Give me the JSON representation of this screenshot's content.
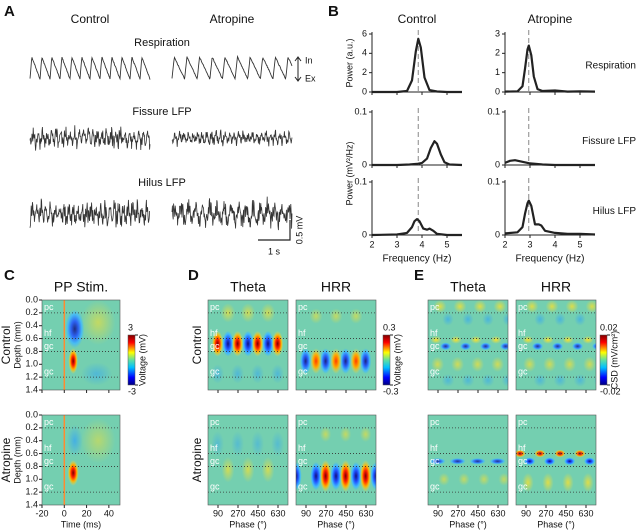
{
  "figure": {
    "A": {
      "label": "A",
      "columns": [
        "Control",
        "Atropine"
      ],
      "rows": [
        "Respiration",
        "Fissure LFP",
        "Hilus LFP"
      ],
      "arrow": [
        "In",
        "Ex"
      ],
      "scale_x": "1 s",
      "scale_y": "0.5 mV"
    },
    "B": {
      "label": "B",
      "columns": [
        "Control",
        "Atropine"
      ]
    },
    "C": {
      "label": "C",
      "title": "PP Stim.",
      "rows": [
        "Control",
        "Atropine"
      ],
      "ylabel": "Depth (mm)",
      "ylim": [
        0,
        1.4
      ],
      "yticks": [
        {
          "value": 0,
          "label": "0.0"
        },
        0.2,
        0.4,
        0.6,
        0.8,
        {
          "value": 1,
          "label": "1.0"
        },
        1.2,
        1.4
      ],
      "xlim": [
        -20,
        50
      ],
      "xticks": [
        -20,
        0,
        20,
        40
      ],
      "xlabel": "Time (ms)",
      "layers": [
        {
          "name": "pc",
          "depth": 0.2
        },
        {
          "name": "hf",
          "depth": 0.6
        },
        {
          "name": "gc",
          "depth": 0.8
        },
        {
          "name": "gc",
          "depth": 1.2
        }
      ],
      "colorbar": {
        "lim": [
          -3,
          3
        ],
        "ticks": [
          3,
          -3
        ],
        "label": "Voltage (mV)"
      }
    },
    "D": {
      "label": "D",
      "columns": [
        "Theta",
        "HRR"
      ],
      "rows": [
        "Control",
        "Atropine"
      ],
      "xlim": [
        0,
        720
      ],
      "xticks": [
        90,
        270,
        450,
        630
      ],
      "xlabel": "Phase (°)",
      "layers": [
        {
          "name": "pc",
          "depth": 0.2
        },
        {
          "name": "hf",
          "depth": 0.6
        },
        {
          "name": "gc",
          "depth": 0.8
        },
        {
          "name": "gc",
          "depth": 1.2
        }
      ],
      "colorbar": {
        "lim": [
          -0.3,
          0.3
        ],
        "ticks": [
          0.3,
          -0.3
        ],
        "label": "Voltage (mV)"
      }
    },
    "E": {
      "label": "E",
      "columns": [
        "Theta",
        "HRR"
      ],
      "xlim": [
        0,
        720
      ],
      "xticks": [
        90,
        270,
        450,
        630
      ],
      "xlabel": "Phase (°)",
      "layers": [
        {
          "name": "pc",
          "depth": 0.2
        },
        {
          "name": "hf",
          "depth": 0.6
        },
        {
          "name": "gc",
          "depth": 0.8
        },
        {
          "name": "gc",
          "depth": 1.2
        }
      ],
      "colorbar": {
        "lim": [
          -0.02,
          0.02
        ],
        "ticks": [
          0.02,
          -0.02
        ],
        "label": "CSD (mV/cm²)"
      }
    }
  },
  "chart_data": [
    {
      "type": "line",
      "ylabel": "Power (a.u.)",
      "color": "#222222",
      "vline": 3.85,
      "xlim": [
        2,
        5.6
      ],
      "xticks": [
        2,
        3,
        4,
        5
      ],
      "ylim": [
        0,
        6
      ],
      "yticks": [
        0,
        2,
        4,
        6
      ],
      "x": [
        2,
        3,
        3.4,
        3.6,
        3.75,
        3.85,
        3.95,
        4.1,
        4.3,
        4.6,
        5,
        5.6
      ],
      "values": [
        0,
        0,
        0.1,
        1.2,
        4.2,
        5.5,
        4.6,
        1.5,
        0.2,
        0.05,
        0,
        0
      ]
    },
    {
      "type": "line",
      "label": "Respiration",
      "color": "#222222",
      "vline": 2.95,
      "xlim": [
        2,
        5.6
      ],
      "xticks": [
        2,
        3,
        4,
        5
      ],
      "ylim": [
        0,
        3
      ],
      "yticks": [
        0,
        1,
        2,
        3
      ],
      "x": [
        2,
        2.5,
        2.7,
        2.8,
        2.9,
        2.95,
        3.05,
        3.15,
        3.3,
        3.5,
        4,
        4.5,
        5,
        5.6
      ],
      "values": [
        0.02,
        0.03,
        0.3,
        1.2,
        2.2,
        2.4,
        1.9,
        0.8,
        0.15,
        0.05,
        0.08,
        0.02,
        0.03,
        0.02
      ]
    },
    {
      "type": "line",
      "ylabel": "Power (mV²/Hz)",
      "color": "#222222",
      "vline": 3.85,
      "xlim": [
        2,
        5.6
      ],
      "xticks": [
        2,
        3,
        4,
        5
      ],
      "ylim": [
        0,
        0.1
      ],
      "yticks": [
        0,
        0.1
      ],
      "x": [
        2,
        3,
        3.5,
        3.8,
        4,
        4.2,
        4.35,
        4.5,
        4.6,
        4.75,
        4.9,
        5.1,
        5.6
      ],
      "values": [
        0,
        0,
        0.001,
        0.002,
        0.004,
        0.012,
        0.032,
        0.045,
        0.04,
        0.02,
        0.005,
        0.001,
        0
      ]
    },
    {
      "type": "line",
      "label": "Fissure LFP",
      "color": "#222222",
      "vline": 2.95,
      "xlim": [
        2,
        5.6
      ],
      "xticks": [
        2,
        3,
        4,
        5
      ],
      "ylim": [
        0,
        0.1
      ],
      "yticks": [
        0,
        0.1
      ],
      "x": [
        2,
        2.2,
        2.4,
        2.7,
        3,
        3.5,
        4,
        5,
        5.6
      ],
      "values": [
        0.004,
        0.008,
        0.009,
        0.006,
        0.003,
        0.001,
        0,
        0,
        0
      ]
    },
    {
      "type": "line",
      "xlabel": "Frequency (Hz)",
      "color": "#222222",
      "vline": 3.85,
      "xlim": [
        2,
        5.6
      ],
      "xticks": [
        2,
        3,
        4,
        5
      ],
      "ylim": [
        0,
        0.1
      ],
      "yticks": [
        0,
        0.1
      ],
      "x": [
        2,
        3,
        3.4,
        3.6,
        3.7,
        3.8,
        3.9,
        4.05,
        4.2,
        4.3,
        4.45,
        4.6,
        5,
        5.6
      ],
      "values": [
        0,
        0.001,
        0.004,
        0.015,
        0.026,
        0.03,
        0.026,
        0.012,
        0.01,
        0.012,
        0.008,
        0.002,
        0,
        0
      ]
    },
    {
      "type": "line",
      "label": "Hilus LFP",
      "xlabel": "Frequency (Hz)",
      "color": "#222222",
      "vline": 2.95,
      "xlim": [
        2,
        5.6
      ],
      "xticks": [
        2,
        3,
        4,
        5
      ],
      "ylim": [
        0,
        0.1
      ],
      "yticks": [
        0,
        0.1
      ],
      "x": [
        2,
        2.5,
        2.7,
        2.8,
        2.9,
        2.95,
        3.05,
        3.2,
        3.35,
        3.45,
        3.6,
        4,
        4.5,
        5,
        5.6
      ],
      "values": [
        0.003,
        0.005,
        0.015,
        0.04,
        0.06,
        0.065,
        0.055,
        0.02,
        0.02,
        0.018,
        0.008,
        0.004,
        0.002,
        0.002,
        0.001
      ]
    }
  ]
}
